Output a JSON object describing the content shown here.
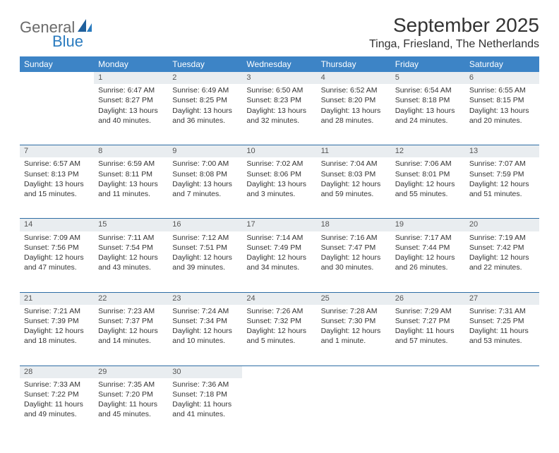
{
  "logo": {
    "text1": "General",
    "text2": "Blue"
  },
  "title": "September 2025",
  "location": "Tinga, Friesland, The Netherlands",
  "colors": {
    "header_bg": "#3d84c6",
    "header_text": "#ffffff",
    "daynum_bg": "#e9edf0",
    "rule": "#2e6da4",
    "logo_gray": "#6a6a6a",
    "logo_blue": "#2a7bbf"
  },
  "weekdays": [
    "Sunday",
    "Monday",
    "Tuesday",
    "Wednesday",
    "Thursday",
    "Friday",
    "Saturday"
  ],
  "weeks": [
    {
      "nums": [
        "",
        "1",
        "2",
        "3",
        "4",
        "5",
        "6"
      ],
      "cells": [
        null,
        {
          "sunrise": "Sunrise: 6:47 AM",
          "sunset": "Sunset: 8:27 PM",
          "daylight": "Daylight: 13 hours and 40 minutes."
        },
        {
          "sunrise": "Sunrise: 6:49 AM",
          "sunset": "Sunset: 8:25 PM",
          "daylight": "Daylight: 13 hours and 36 minutes."
        },
        {
          "sunrise": "Sunrise: 6:50 AM",
          "sunset": "Sunset: 8:23 PM",
          "daylight": "Daylight: 13 hours and 32 minutes."
        },
        {
          "sunrise": "Sunrise: 6:52 AM",
          "sunset": "Sunset: 8:20 PM",
          "daylight": "Daylight: 13 hours and 28 minutes."
        },
        {
          "sunrise": "Sunrise: 6:54 AM",
          "sunset": "Sunset: 8:18 PM",
          "daylight": "Daylight: 13 hours and 24 minutes."
        },
        {
          "sunrise": "Sunrise: 6:55 AM",
          "sunset": "Sunset: 8:15 PM",
          "daylight": "Daylight: 13 hours and 20 minutes."
        }
      ]
    },
    {
      "nums": [
        "7",
        "8",
        "9",
        "10",
        "11",
        "12",
        "13"
      ],
      "cells": [
        {
          "sunrise": "Sunrise: 6:57 AM",
          "sunset": "Sunset: 8:13 PM",
          "daylight": "Daylight: 13 hours and 15 minutes."
        },
        {
          "sunrise": "Sunrise: 6:59 AM",
          "sunset": "Sunset: 8:11 PM",
          "daylight": "Daylight: 13 hours and 11 minutes."
        },
        {
          "sunrise": "Sunrise: 7:00 AM",
          "sunset": "Sunset: 8:08 PM",
          "daylight": "Daylight: 13 hours and 7 minutes."
        },
        {
          "sunrise": "Sunrise: 7:02 AM",
          "sunset": "Sunset: 8:06 PM",
          "daylight": "Daylight: 13 hours and 3 minutes."
        },
        {
          "sunrise": "Sunrise: 7:04 AM",
          "sunset": "Sunset: 8:03 PM",
          "daylight": "Daylight: 12 hours and 59 minutes."
        },
        {
          "sunrise": "Sunrise: 7:06 AM",
          "sunset": "Sunset: 8:01 PM",
          "daylight": "Daylight: 12 hours and 55 minutes."
        },
        {
          "sunrise": "Sunrise: 7:07 AM",
          "sunset": "Sunset: 7:59 PM",
          "daylight": "Daylight: 12 hours and 51 minutes."
        }
      ]
    },
    {
      "nums": [
        "14",
        "15",
        "16",
        "17",
        "18",
        "19",
        "20"
      ],
      "cells": [
        {
          "sunrise": "Sunrise: 7:09 AM",
          "sunset": "Sunset: 7:56 PM",
          "daylight": "Daylight: 12 hours and 47 minutes."
        },
        {
          "sunrise": "Sunrise: 7:11 AM",
          "sunset": "Sunset: 7:54 PM",
          "daylight": "Daylight: 12 hours and 43 minutes."
        },
        {
          "sunrise": "Sunrise: 7:12 AM",
          "sunset": "Sunset: 7:51 PM",
          "daylight": "Daylight: 12 hours and 39 minutes."
        },
        {
          "sunrise": "Sunrise: 7:14 AM",
          "sunset": "Sunset: 7:49 PM",
          "daylight": "Daylight: 12 hours and 34 minutes."
        },
        {
          "sunrise": "Sunrise: 7:16 AM",
          "sunset": "Sunset: 7:47 PM",
          "daylight": "Daylight: 12 hours and 30 minutes."
        },
        {
          "sunrise": "Sunrise: 7:17 AM",
          "sunset": "Sunset: 7:44 PM",
          "daylight": "Daylight: 12 hours and 26 minutes."
        },
        {
          "sunrise": "Sunrise: 7:19 AM",
          "sunset": "Sunset: 7:42 PM",
          "daylight": "Daylight: 12 hours and 22 minutes."
        }
      ]
    },
    {
      "nums": [
        "21",
        "22",
        "23",
        "24",
        "25",
        "26",
        "27"
      ],
      "cells": [
        {
          "sunrise": "Sunrise: 7:21 AM",
          "sunset": "Sunset: 7:39 PM",
          "daylight": "Daylight: 12 hours and 18 minutes."
        },
        {
          "sunrise": "Sunrise: 7:23 AM",
          "sunset": "Sunset: 7:37 PM",
          "daylight": "Daylight: 12 hours and 14 minutes."
        },
        {
          "sunrise": "Sunrise: 7:24 AM",
          "sunset": "Sunset: 7:34 PM",
          "daylight": "Daylight: 12 hours and 10 minutes."
        },
        {
          "sunrise": "Sunrise: 7:26 AM",
          "sunset": "Sunset: 7:32 PM",
          "daylight": "Daylight: 12 hours and 5 minutes."
        },
        {
          "sunrise": "Sunrise: 7:28 AM",
          "sunset": "Sunset: 7:30 PM",
          "daylight": "Daylight: 12 hours and 1 minute."
        },
        {
          "sunrise": "Sunrise: 7:29 AM",
          "sunset": "Sunset: 7:27 PM",
          "daylight": "Daylight: 11 hours and 57 minutes."
        },
        {
          "sunrise": "Sunrise: 7:31 AM",
          "sunset": "Sunset: 7:25 PM",
          "daylight": "Daylight: 11 hours and 53 minutes."
        }
      ]
    },
    {
      "nums": [
        "28",
        "29",
        "30",
        "",
        "",
        "",
        ""
      ],
      "cells": [
        {
          "sunrise": "Sunrise: 7:33 AM",
          "sunset": "Sunset: 7:22 PM",
          "daylight": "Daylight: 11 hours and 49 minutes."
        },
        {
          "sunrise": "Sunrise: 7:35 AM",
          "sunset": "Sunset: 7:20 PM",
          "daylight": "Daylight: 11 hours and 45 minutes."
        },
        {
          "sunrise": "Sunrise: 7:36 AM",
          "sunset": "Sunset: 7:18 PM",
          "daylight": "Daylight: 11 hours and 41 minutes."
        },
        null,
        null,
        null,
        null
      ]
    }
  ]
}
